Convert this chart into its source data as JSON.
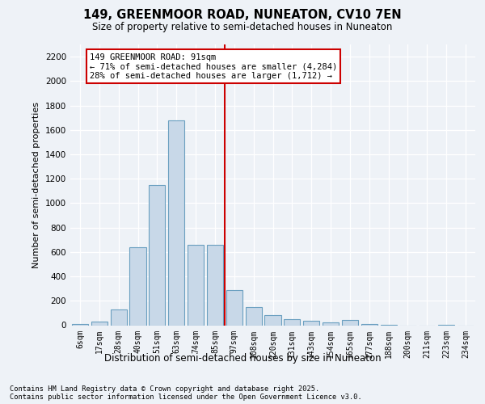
{
  "title_line1": "149, GREENMOOR ROAD, NUNEATON, CV10 7EN",
  "title_line2": "Size of property relative to semi-detached houses in Nuneaton",
  "xlabel": "Distribution of semi-detached houses by size in Nuneaton",
  "ylabel": "Number of semi-detached properties",
  "categories": [
    "6sqm",
    "17sqm",
    "28sqm",
    "40sqm",
    "51sqm",
    "63sqm",
    "74sqm",
    "85sqm",
    "97sqm",
    "108sqm",
    "120sqm",
    "131sqm",
    "143sqm",
    "154sqm",
    "165sqm",
    "177sqm",
    "188sqm",
    "200sqm",
    "211sqm",
    "223sqm",
    "234sqm"
  ],
  "values": [
    10,
    30,
    130,
    640,
    1150,
    1680,
    660,
    660,
    290,
    150,
    80,
    50,
    35,
    25,
    40,
    10,
    5,
    0,
    0,
    5,
    0
  ],
  "bar_color": "#c8d8e8",
  "bar_edge_color": "#6a9fc0",
  "vline_color": "#cc0000",
  "annotation_line1": "149 GREENMOOR ROAD: 91sqm",
  "annotation_line2": "← 71% of semi-detached houses are smaller (4,284)",
  "annotation_line3": "28% of semi-detached houses are larger (1,712) →",
  "annotation_box_color": "#cc0000",
  "ylim": [
    0,
    2300
  ],
  "yticks": [
    0,
    200,
    400,
    600,
    800,
    1000,
    1200,
    1400,
    1600,
    1800,
    2000,
    2200
  ],
  "background_color": "#eef2f7",
  "footer_line1": "Contains HM Land Registry data © Crown copyright and database right 2025.",
  "footer_line2": "Contains public sector information licensed under the Open Government Licence v3.0."
}
